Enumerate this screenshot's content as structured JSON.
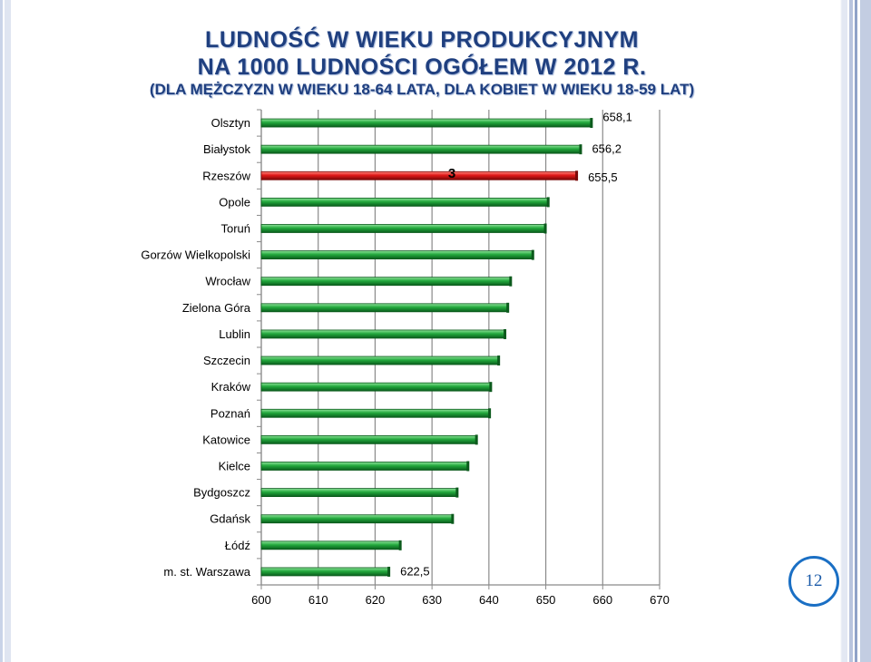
{
  "title": {
    "line1": "LUDNOŚĆ  W  WIEKU  PRODUKCYJNYM",
    "line2": "NA  1000  LUDNOŚCI  OGÓŁEM  W  2012 R.",
    "line3": "(DLA MĘŻCZYZN W WIEKU 18-64 LATA, DLA KOBIET W WIEKU 18-59 LAT)"
  },
  "page_number": "12",
  "colors": {
    "bar": "#1fa03a",
    "bar_dark": "#0b5a1c",
    "highlight": "#e01818",
    "highlight_dark": "#7a0808",
    "title": "#1f3f7f"
  },
  "chart_data": {
    "type": "bar",
    "orientation": "horizontal",
    "categories": [
      "Olsztyn",
      "Białystok",
      "Rzeszów",
      "Opole",
      "Toruń",
      "Gorzów Wielkopolski",
      "Wrocław",
      "Zielona Góra",
      "Lublin",
      "Szczecin",
      "Kraków",
      "Poznań",
      "Katowice",
      "Kielce",
      "Bydgoszcz",
      "Gdańsk",
      "Łódź",
      "m. st. Warszawa"
    ],
    "values": [
      658.1,
      656.2,
      655.5,
      650.5,
      650.0,
      647.8,
      643.9,
      643.4,
      642.9,
      641.8,
      640.4,
      640.2,
      637.9,
      636.4,
      634.5,
      633.7,
      624.5,
      622.5
    ],
    "highlight_index": 2,
    "xlim": [
      600,
      670
    ],
    "x_ticks": [
      "600",
      "610",
      "620",
      "630",
      "640",
      "650",
      "660",
      "670"
    ],
    "grid": true,
    "data_labels": [
      {
        "index": 0,
        "text": "658,1"
      },
      {
        "index": 1,
        "text": "656,2"
      },
      {
        "index": 2,
        "text": "655,5"
      },
      {
        "index": 17,
        "text": "622,5"
      }
    ],
    "annotation": {
      "index": 2,
      "text": "3"
    }
  }
}
